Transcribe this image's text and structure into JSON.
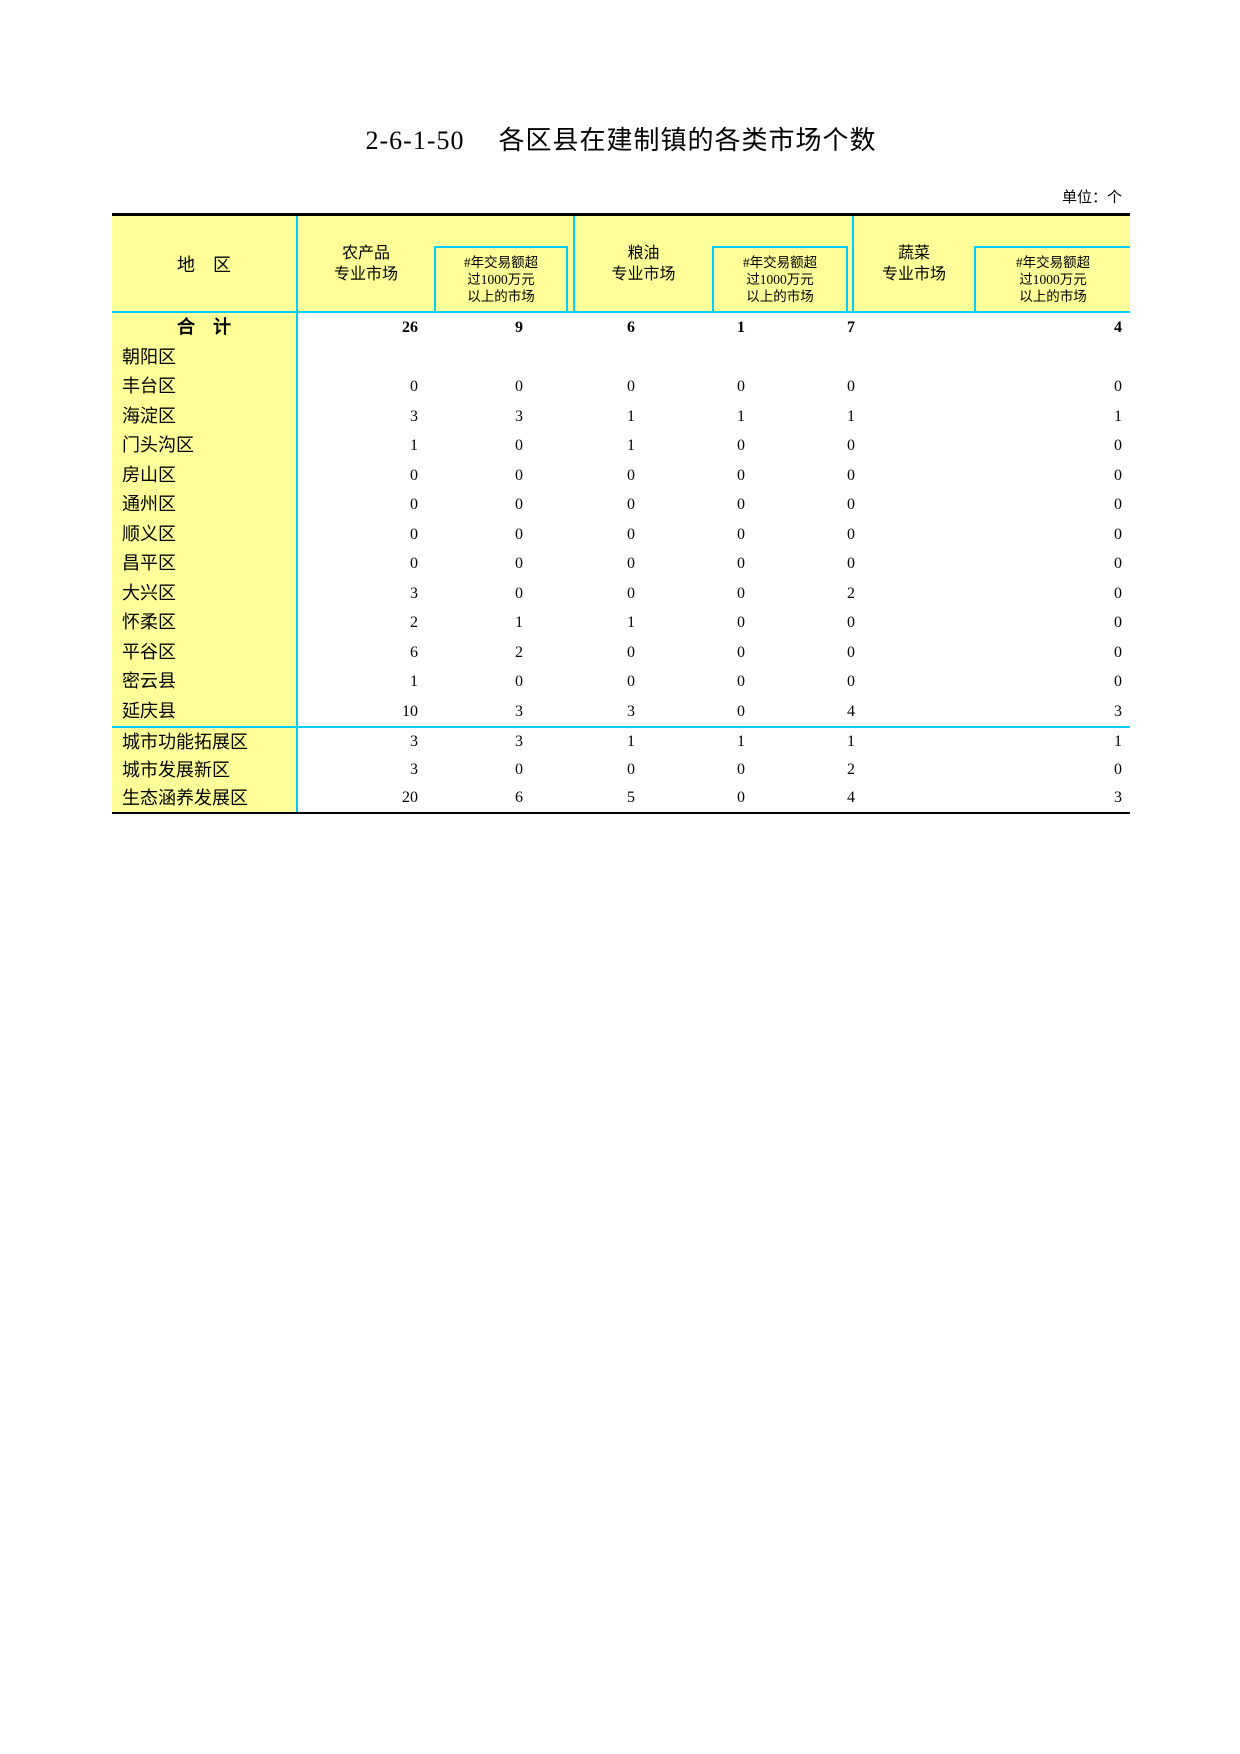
{
  "page": {
    "title_code": "2-6-1-50",
    "title_text": "各区县在建制镇的各类市场个数",
    "unit_note": "单位：个"
  },
  "table": {
    "region_header": "地　区",
    "groups": [
      {
        "main_lines": [
          "农产品",
          "专业市场"
        ],
        "sub_lines": [
          "#年交易额超",
          "过1000万元",
          "以上的市场"
        ]
      },
      {
        "main_lines": [
          "粮油",
          "专业市场"
        ],
        "sub_lines": [
          "#年交易额超",
          "过1000万元",
          "以上的市场"
        ]
      },
      {
        "main_lines": [
          "蔬菜",
          "专业市场"
        ],
        "sub_lines": [
          "#年交易额超",
          "过1000万元",
          "以上的市场"
        ]
      }
    ],
    "sections": [
      {
        "rows": [
          {
            "label": "合　计",
            "bold": true,
            "label_center": true,
            "values": [
              "26",
              "9",
              "6",
              "1",
              "7",
              "4"
            ]
          },
          {
            "label": "朝阳区",
            "values": [
              "",
              "",
              "",
              "",
              "",
              ""
            ]
          },
          {
            "label": "丰台区",
            "values": [
              "0",
              "0",
              "0",
              "0",
              "0",
              "0"
            ]
          },
          {
            "label": "海淀区",
            "values": [
              "3",
              "3",
              "1",
              "1",
              "1",
              "1"
            ]
          },
          {
            "label": "门头沟区",
            "values": [
              "1",
              "0",
              "1",
              "0",
              "0",
              "0"
            ]
          },
          {
            "label": "房山区",
            "values": [
              "0",
              "0",
              "0",
              "0",
              "0",
              "0"
            ]
          },
          {
            "label": "通州区",
            "values": [
              "0",
              "0",
              "0",
              "0",
              "0",
              "0"
            ]
          },
          {
            "label": "顺义区",
            "values": [
              "0",
              "0",
              "0",
              "0",
              "0",
              "0"
            ]
          },
          {
            "label": "昌平区",
            "values": [
              "0",
              "0",
              "0",
              "0",
              "0",
              "0"
            ]
          },
          {
            "label": "大兴区",
            "values": [
              "3",
              "0",
              "0",
              "0",
              "2",
              "0"
            ]
          },
          {
            "label": "怀柔区",
            "values": [
              "2",
              "1",
              "1",
              "0",
              "0",
              "0"
            ]
          },
          {
            "label": "平谷区",
            "values": [
              "6",
              "2",
              "0",
              "0",
              "0",
              "0"
            ]
          },
          {
            "label": "密云县",
            "values": [
              "1",
              "0",
              "0",
              "0",
              "0",
              "0"
            ]
          },
          {
            "label": "延庆县",
            "values": [
              "10",
              "3",
              "3",
              "0",
              "4",
              "3"
            ]
          }
        ]
      },
      {
        "rows": [
          {
            "label": "城市功能拓展区",
            "values": [
              "3",
              "3",
              "1",
              "1",
              "1",
              "1"
            ]
          },
          {
            "label": "城市发展新区",
            "values": [
              "3",
              "0",
              "0",
              "0",
              "2",
              "0"
            ]
          },
          {
            "label": "生态涵养发展区",
            "values": [
              "20",
              "6",
              "5",
              "0",
              "4",
              "3"
            ]
          }
        ]
      }
    ]
  },
  "colors": {
    "highlight_yellow": "#FFFF99",
    "grid_cyan": "#00CCFF",
    "border_black": "#000000"
  }
}
